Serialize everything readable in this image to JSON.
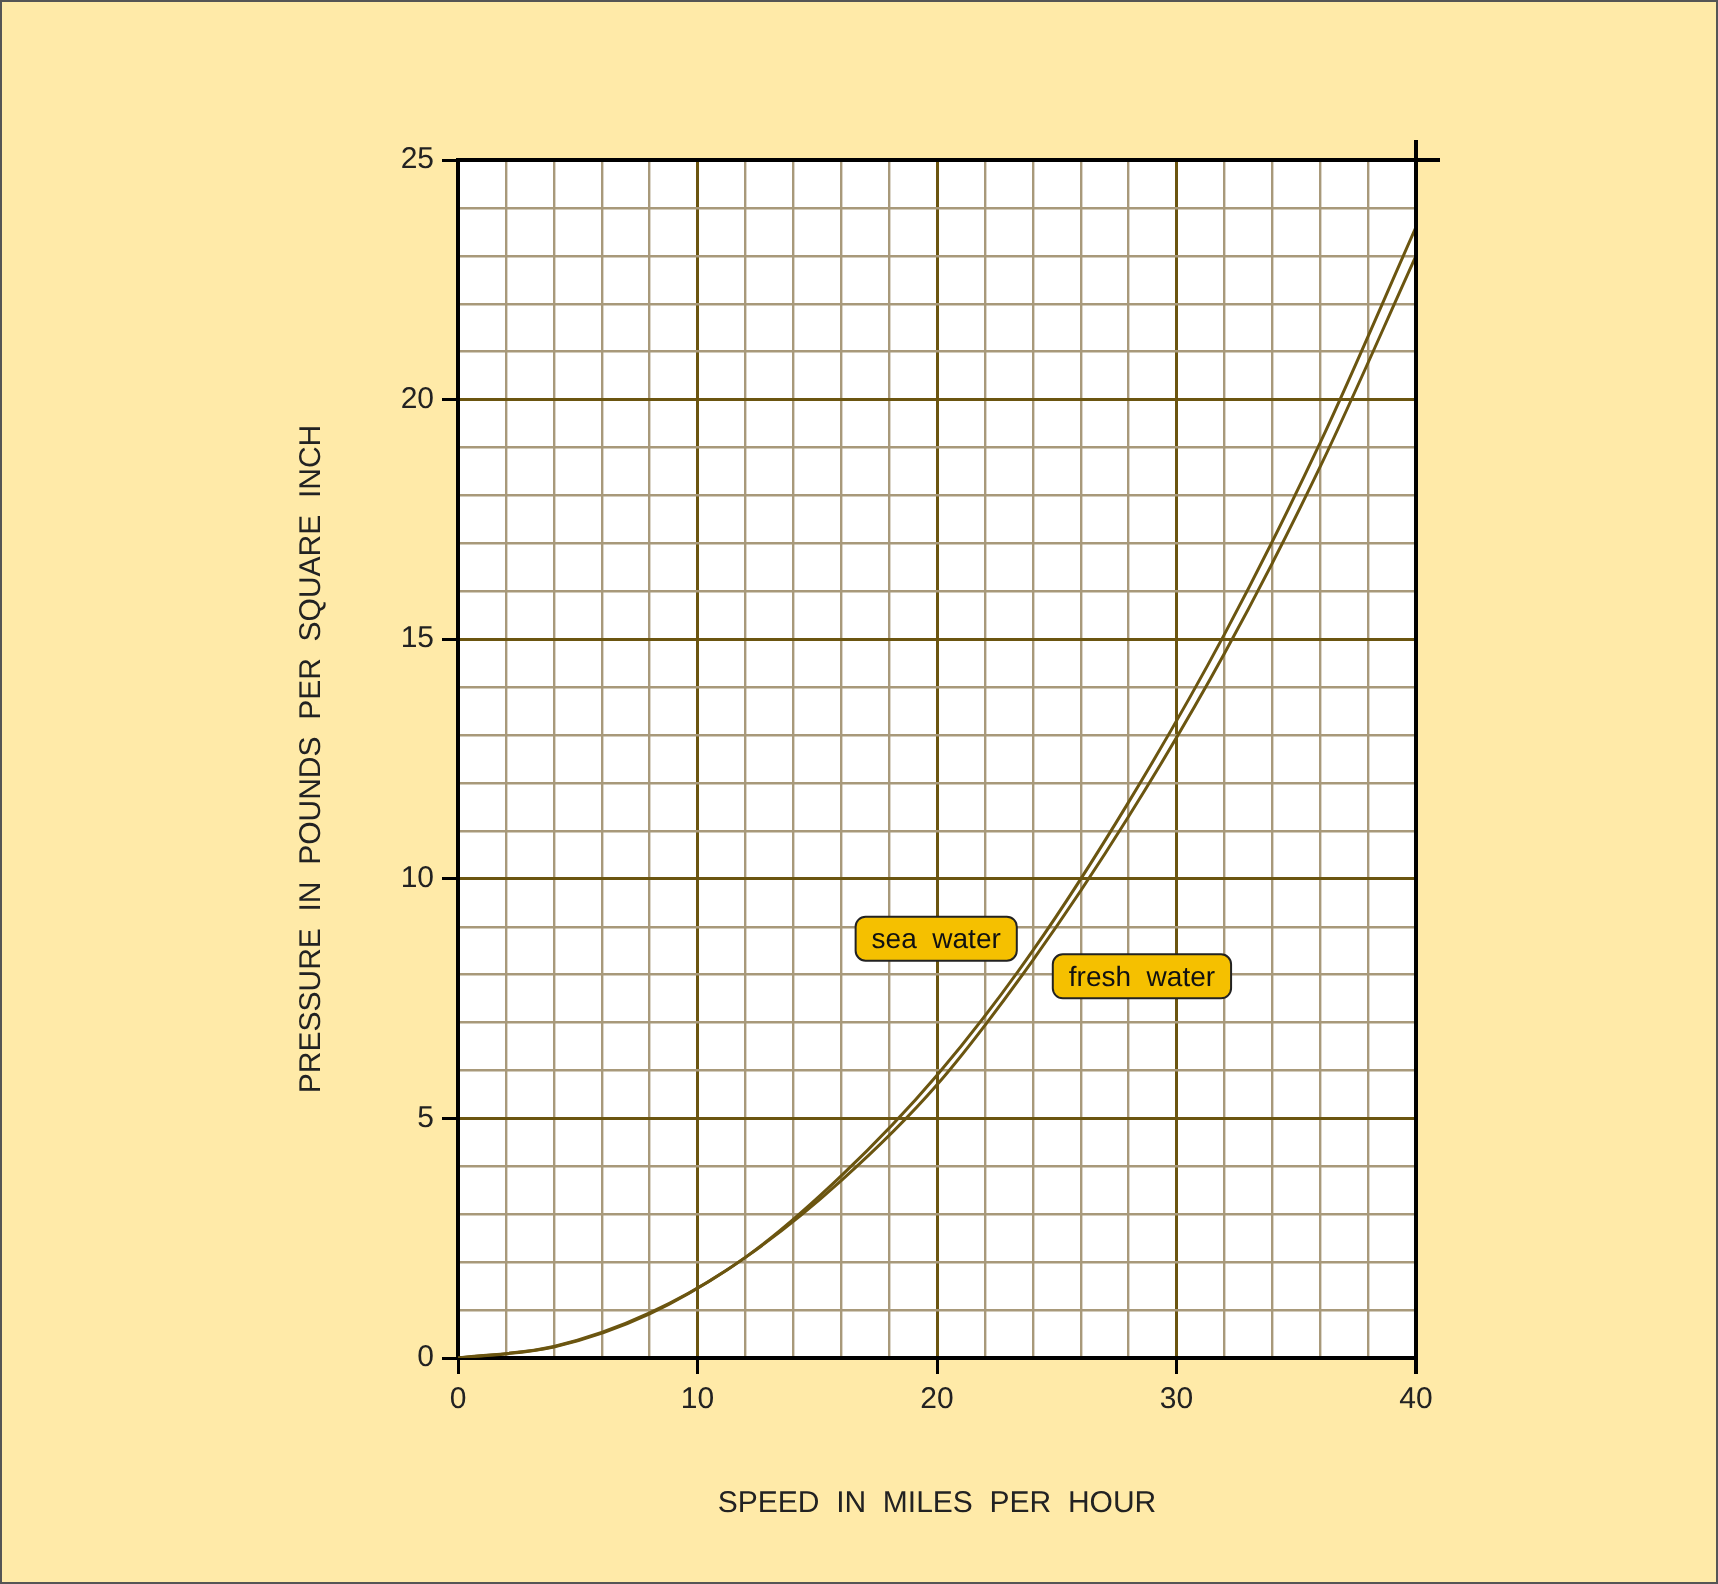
{
  "chart_data": {
    "type": "line",
    "xlabel": "SPEED  IN  MILES  PER  HOUR",
    "ylabel": "PRESSURE  IN  POUNDS  PER  SQUARE  INCH",
    "x": [
      0,
      4,
      8,
      12,
      16,
      20,
      24,
      28,
      32,
      36,
      40
    ],
    "series": [
      {
        "name": "sea  water",
        "color": "#6b5510",
        "values": [
          0,
          0.24,
          0.94,
          2.1,
          3.8,
          5.9,
          8.5,
          11.6,
          15.1,
          19.1,
          23.6
        ]
      },
      {
        "name": "fresh  water",
        "color": "#6b5510",
        "values": [
          0,
          0.23,
          0.92,
          2.1,
          3.7,
          5.7,
          8.3,
          11.3,
          14.7,
          18.6,
          23.0
        ]
      }
    ],
    "xlim": [
      0,
      40
    ],
    "ylim": [
      0,
      25
    ],
    "xticks": [
      0,
      {
        "value": 2,
        "label": null
      },
      {
        "value": 4,
        "label": null
      },
      {
        "value": 6,
        "label": null
      },
      {
        "value": 8,
        "label": null
      },
      10,
      {
        "value": 12,
        "label": null
      },
      {
        "value": 14,
        "label": null
      },
      {
        "value": 16,
        "label": null
      },
      {
        "value": 18,
        "label": null
      },
      20,
      {
        "value": 22,
        "label": null
      },
      {
        "value": 24,
        "label": null
      },
      {
        "value": 26,
        "label": null
      },
      {
        "value": 28,
        "label": null
      },
      30,
      {
        "value": 32,
        "label": null
      },
      {
        "value": 34,
        "label": null
      },
      {
        "value": 36,
        "label": null
      },
      {
        "value": 38,
        "label": null
      },
      40
    ],
    "yticks": [
      0,
      {
        "value": 1,
        "label": null
      },
      {
        "value": 2,
        "label": null
      },
      {
        "value": 3,
        "label": null
      },
      {
        "value": 4,
        "label": null
      },
      5,
      {
        "value": 6,
        "label": null
      },
      {
        "value": 7,
        "label": null
      },
      {
        "value": 8,
        "label": null
      },
      {
        "value": 9,
        "label": null
      },
      10,
      {
        "value": 11,
        "label": null
      },
      {
        "value": 12,
        "label": null
      },
      {
        "value": 13,
        "label": null
      },
      {
        "value": 14,
        "label": null
      },
      15,
      {
        "value": 16,
        "label": null
      },
      {
        "value": 17,
        "label": null
      },
      {
        "value": 18,
        "label": null
      },
      {
        "value": 19,
        "label": null
      },
      20,
      {
        "value": 21,
        "label": null
      },
      {
        "value": 22,
        "label": null
      },
      {
        "value": 23,
        "label": null
      },
      {
        "value": 24,
        "label": null
      },
      25
    ],
    "grid": true,
    "legend": false,
    "marker": "none",
    "line_style": "solid"
  }
}
